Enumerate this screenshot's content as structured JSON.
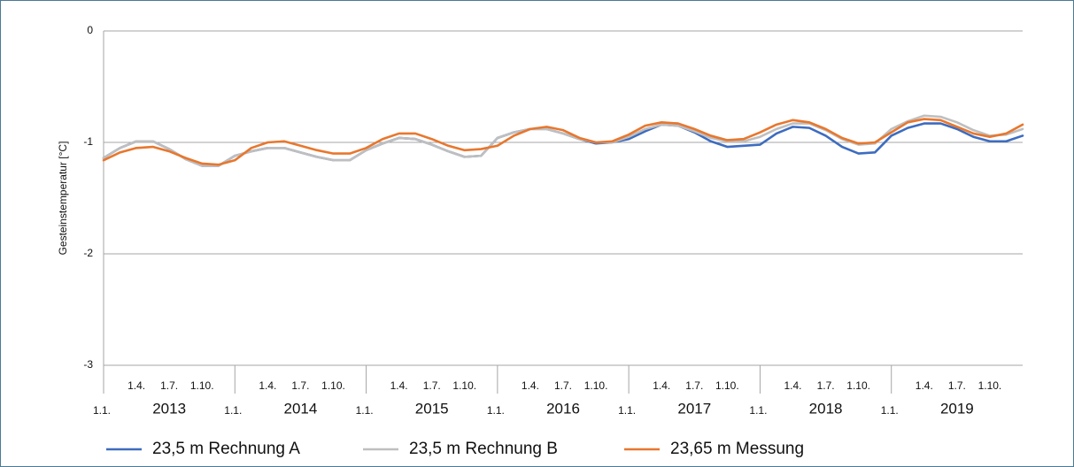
{
  "chart_data": {
    "type": "line",
    "y_label": "Gesteinstemperatur [°C]",
    "xlim": [
      2013,
      2020
    ],
    "ylim": [
      -3,
      0
    ],
    "yticks": [
      0,
      -1,
      -2,
      -3
    ],
    "grid": true,
    "legend": "bottom",
    "xticks": [
      {
        "value": 2013,
        "label": "1.1."
      },
      {
        "value": 2013.25,
        "label": "1.4."
      },
      {
        "value": 2013.5,
        "label": "1.7."
      },
      {
        "value": 2013.75,
        "label": "1.10."
      },
      {
        "value": 2014,
        "label": "1.1."
      },
      {
        "value": 2014.25,
        "label": "1.4."
      },
      {
        "value": 2014.5,
        "label": "1.7."
      },
      {
        "value": 2014.75,
        "label": "1.10."
      },
      {
        "value": 2015,
        "label": "1.1."
      },
      {
        "value": 2015.25,
        "label": "1.4."
      },
      {
        "value": 2015.5,
        "label": "1.7."
      },
      {
        "value": 2015.75,
        "label": "1.10."
      },
      {
        "value": 2016,
        "label": "1.1."
      },
      {
        "value": 2016.25,
        "label": "1.4."
      },
      {
        "value": 2016.5,
        "label": "1.7."
      },
      {
        "value": 2016.75,
        "label": "1.10."
      },
      {
        "value": 2017,
        "label": "1.1."
      },
      {
        "value": 2017.25,
        "label": "1.4."
      },
      {
        "value": 2017.5,
        "label": "1.7."
      },
      {
        "value": 2017.75,
        "label": "1.10."
      },
      {
        "value": 2018,
        "label": "1.1."
      },
      {
        "value": 2018.25,
        "label": "1.4."
      },
      {
        "value": 2018.5,
        "label": "1.7."
      },
      {
        "value": 2018.75,
        "label": "1.10."
      },
      {
        "value": 2019,
        "label": "1.1."
      },
      {
        "value": 2019.25,
        "label": "1.4."
      },
      {
        "value": 2019.5,
        "label": "1.7."
      },
      {
        "value": 2019.75,
        "label": "1.10."
      }
    ],
    "year_labels": [
      {
        "value": 2013.5,
        "label": "2013"
      },
      {
        "value": 2014.5,
        "label": "2014"
      },
      {
        "value": 2015.5,
        "label": "2015"
      },
      {
        "value": 2016.5,
        "label": "2016"
      },
      {
        "value": 2017.5,
        "label": "2017"
      },
      {
        "value": 2018.5,
        "label": "2018"
      },
      {
        "value": 2019.5,
        "label": "2019"
      }
    ],
    "x": [
      2013,
      2013.125,
      2013.25,
      2013.375,
      2013.5,
      2013.625,
      2013.75,
      2013.875,
      2014,
      2014.125,
      2014.25,
      2014.375,
      2014.5,
      2014.625,
      2014.75,
      2014.875,
      2015,
      2015.125,
      2015.25,
      2015.375,
      2015.5,
      2015.625,
      2015.75,
      2015.875,
      2016,
      2016.125,
      2016.25,
      2016.375,
      2016.5,
      2016.625,
      2016.75,
      2016.875,
      2017,
      2017.125,
      2017.25,
      2017.375,
      2017.5,
      2017.625,
      2017.75,
      2017.875,
      2018,
      2018.125,
      2018.25,
      2018.375,
      2018.5,
      2018.625,
      2018.75,
      2018.875,
      2019,
      2019.125,
      2019.25,
      2019.375,
      2019.5,
      2019.625,
      2019.75,
      2019.875,
      2020
    ],
    "series": [
      {
        "name": "23,5 m Rechnung A",
        "color": "#3d6cc0",
        "values": [
          -1.14,
          -1.05,
          -0.99,
          -0.99,
          -1.06,
          -1.15,
          -1.21,
          -1.21,
          -1.12,
          -1.08,
          -1.05,
          -1.05,
          -1.09,
          -1.13,
          -1.16,
          -1.16,
          -1.07,
          -1.01,
          -0.96,
          -0.97,
          -1.02,
          -1.08,
          -1.13,
          -1.12,
          -0.96,
          -0.91,
          -0.88,
          -0.88,
          -0.92,
          -0.97,
          -1.01,
          -1.0,
          -0.97,
          -0.9,
          -0.84,
          -0.85,
          -0.91,
          -0.99,
          -1.04,
          -1.03,
          -1.02,
          -0.92,
          -0.86,
          -0.87,
          -0.94,
          -1.04,
          -1.1,
          -1.09,
          -0.94,
          -0.87,
          -0.83,
          -0.83,
          -0.88,
          -0.95,
          -0.99,
          -0.99,
          -0.94
        ]
      },
      {
        "name": "23,5 m Rechnung B",
        "color": "#bfbfbf",
        "values": [
          -1.14,
          -1.05,
          -0.99,
          -0.99,
          -1.06,
          -1.15,
          -1.21,
          -1.21,
          -1.12,
          -1.08,
          -1.05,
          -1.05,
          -1.09,
          -1.13,
          -1.16,
          -1.16,
          -1.07,
          -1.01,
          -0.96,
          -0.97,
          -1.02,
          -1.08,
          -1.13,
          -1.12,
          -0.96,
          -0.91,
          -0.88,
          -0.88,
          -0.92,
          -0.97,
          -1.0,
          -1.0,
          -0.95,
          -0.88,
          -0.84,
          -0.85,
          -0.9,
          -0.96,
          -0.99,
          -0.99,
          -0.95,
          -0.88,
          -0.83,
          -0.83,
          -0.89,
          -0.97,
          -1.02,
          -1.01,
          -0.88,
          -0.81,
          -0.76,
          -0.77,
          -0.82,
          -0.89,
          -0.94,
          -0.93,
          -0.88
        ]
      },
      {
        "name": "23,65 m Messung",
        "color": "#e8772e",
        "values": [
          -1.16,
          -1.09,
          -1.05,
          -1.04,
          -1.08,
          -1.14,
          -1.19,
          -1.2,
          -1.16,
          -1.05,
          -1.0,
          -0.99,
          -1.03,
          -1.07,
          -1.1,
          -1.1,
          -1.05,
          -0.97,
          -0.92,
          -0.92,
          -0.97,
          -1.03,
          -1.07,
          -1.06,
          -1.03,
          -0.94,
          -0.88,
          -0.86,
          -0.89,
          -0.96,
          -1.0,
          -0.99,
          -0.93,
          -0.85,
          -0.82,
          -0.83,
          -0.88,
          -0.94,
          -0.98,
          -0.97,
          -0.91,
          -0.84,
          -0.8,
          -0.82,
          -0.88,
          -0.96,
          -1.01,
          -1.0,
          -0.91,
          -0.82,
          -0.79,
          -0.8,
          -0.86,
          -0.92,
          -0.95,
          -0.92,
          -0.84
        ]
      }
    ]
  }
}
